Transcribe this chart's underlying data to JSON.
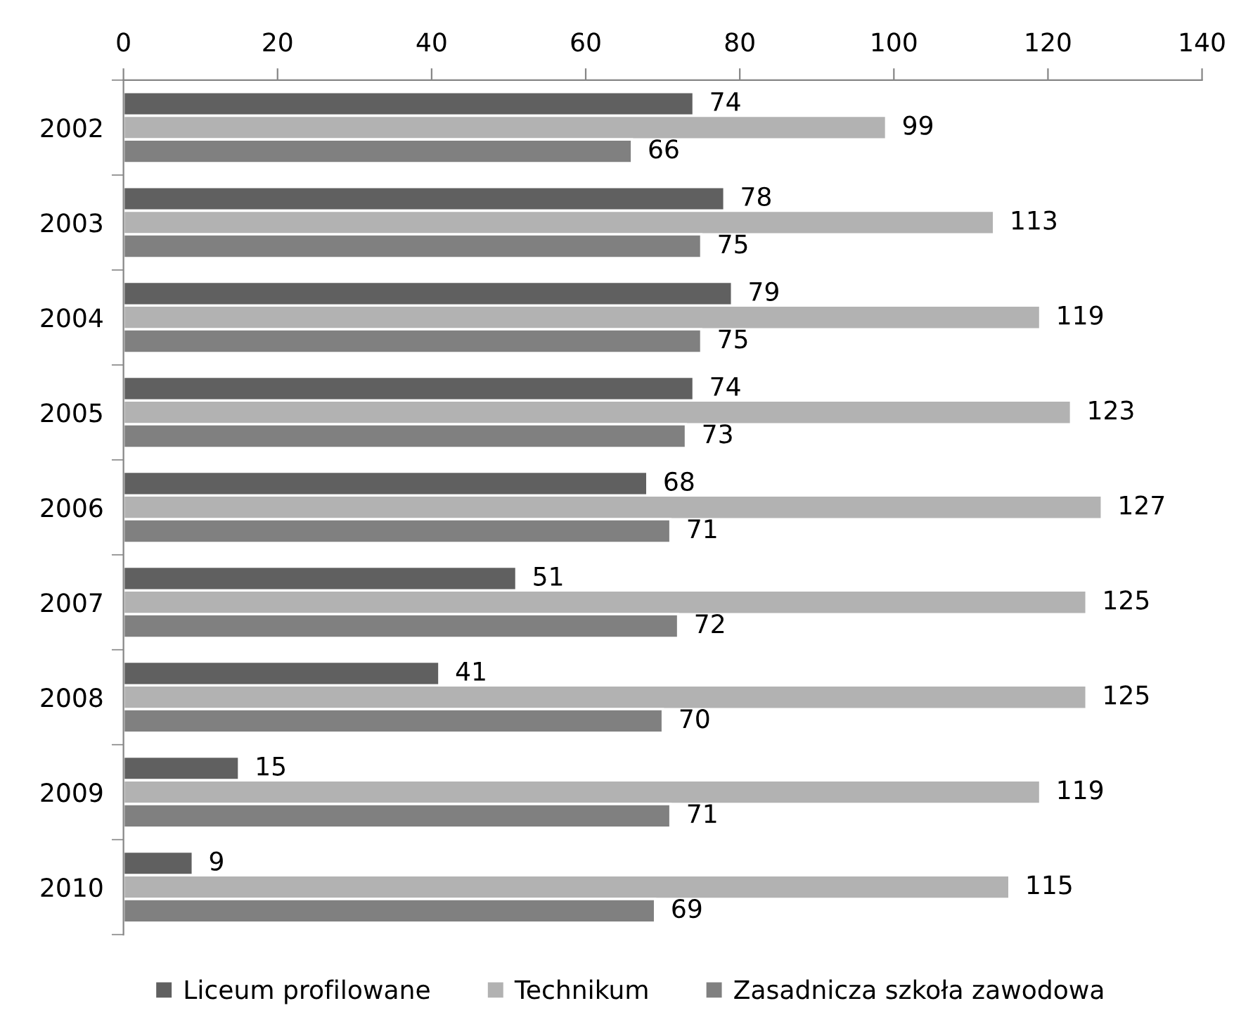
{
  "chart_data": {
    "type": "bar",
    "orientation": "horizontal",
    "categories": [
      "2002",
      "2003",
      "2004",
      "2005",
      "2006",
      "2007",
      "2008",
      "2009",
      "2010"
    ],
    "series": [
      {
        "name": "Liceum profilowane",
        "color": "#606060",
        "values": [
          74,
          78,
          79,
          74,
          68,
          51,
          41,
          15,
          9
        ]
      },
      {
        "name": "Technikum",
        "color": "#b2b2b2",
        "values": [
          99,
          113,
          119,
          123,
          127,
          125,
          125,
          119,
          115
        ]
      },
      {
        "name": "Zasadnicza szkoła zawodowa",
        "color": "#808080",
        "values": [
          66,
          75,
          75,
          73,
          71,
          72,
          70,
          71,
          69
        ]
      }
    ],
    "xlim": [
      0,
      140
    ],
    "xticks": [
      0,
      20,
      40,
      60,
      80,
      100,
      120,
      140
    ],
    "data_labels": true,
    "grid": false,
    "legend": "bottom"
  }
}
